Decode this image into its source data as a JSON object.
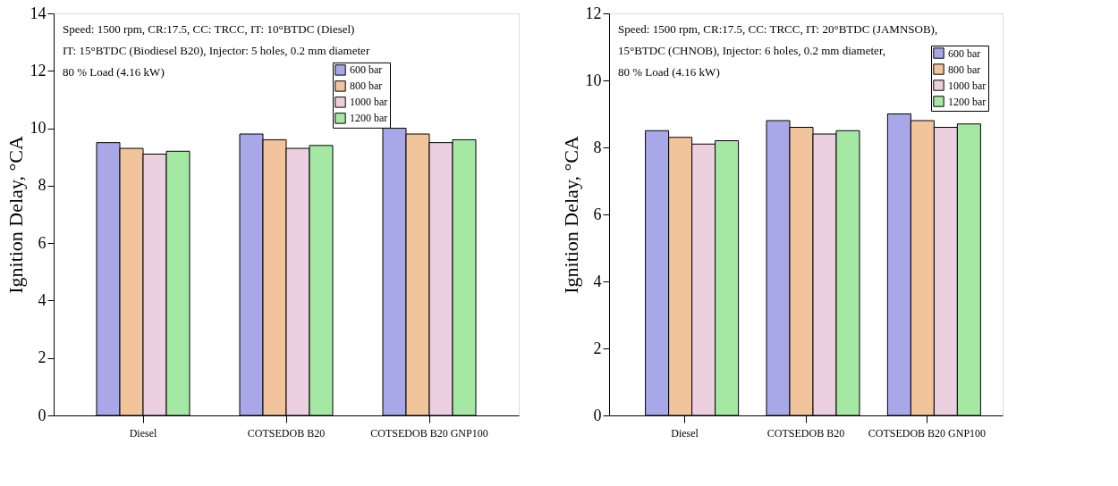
{
  "chart_data": [
    {
      "type": "bar",
      "categories": [
        "Diesel",
        "COTSEDOB B20",
        "COTSEDOB B20 GNP100"
      ],
      "ylabel": "Ignition Delay, °CA",
      "ylim": [
        0,
        14
      ],
      "yticks": [
        0,
        2,
        4,
        6,
        8,
        10,
        12,
        14
      ],
      "grid": false,
      "legend": "top right",
      "annotations": [
        "Speed: 1500 rpm, CR:17.5, CC: TRCC, IT: 10°BTDC (Diesel)",
        "IT: 15°BTDC (Biodiesel B20), Injector: 5 holes, 0.2 mm diameter",
        "80 % Load (4.16 kW)"
      ],
      "series": [
        {
          "name": "600 bar",
          "color": "#a8a8e8",
          "values": [
            9.5,
            9.8,
            10.0
          ]
        },
        {
          "name": "800 bar",
          "color": "#f2c49c",
          "values": [
            9.3,
            9.6,
            9.8
          ]
        },
        {
          "name": "1000 bar",
          "color": "#ecd0e0",
          "values": [
            9.1,
            9.3,
            9.5
          ]
        },
        {
          "name": "1200 bar",
          "color": "#a4e8a4",
          "values": [
            9.2,
            9.4,
            9.6
          ]
        }
      ]
    },
    {
      "type": "bar",
      "categories": [
        "Diesel",
        "COTSEDOB B20",
        "COTSEDOB B20 GNP100"
      ],
      "ylabel": "Ignition Delay, °CA",
      "ylim": [
        0,
        12
      ],
      "yticks": [
        0,
        2,
        4,
        6,
        8,
        10,
        12
      ],
      "grid": false,
      "legend": "top right",
      "annotations": [
        "Speed: 1500 rpm, CR:17.5, CC: TRCC, IT: 20°BTDC (JAMNSOB),",
        "15°BTDC (CHNOB), Injector: 6 holes, 0.2 mm diameter,",
        "80 % Load (4.16 kW)"
      ],
      "series": [
        {
          "name": "600 bar",
          "color": "#a8a8e8",
          "values": [
            8.5,
            8.8,
            9.0
          ]
        },
        {
          "name": "800 bar",
          "color": "#f2c49c",
          "values": [
            8.3,
            8.6,
            8.8
          ]
        },
        {
          "name": "1000 bar",
          "color": "#ecd0e0",
          "values": [
            8.1,
            8.4,
            8.6
          ]
        },
        {
          "name": "1200 bar",
          "color": "#a4e8a4",
          "values": [
            8.2,
            8.5,
            8.7
          ]
        }
      ]
    }
  ]
}
